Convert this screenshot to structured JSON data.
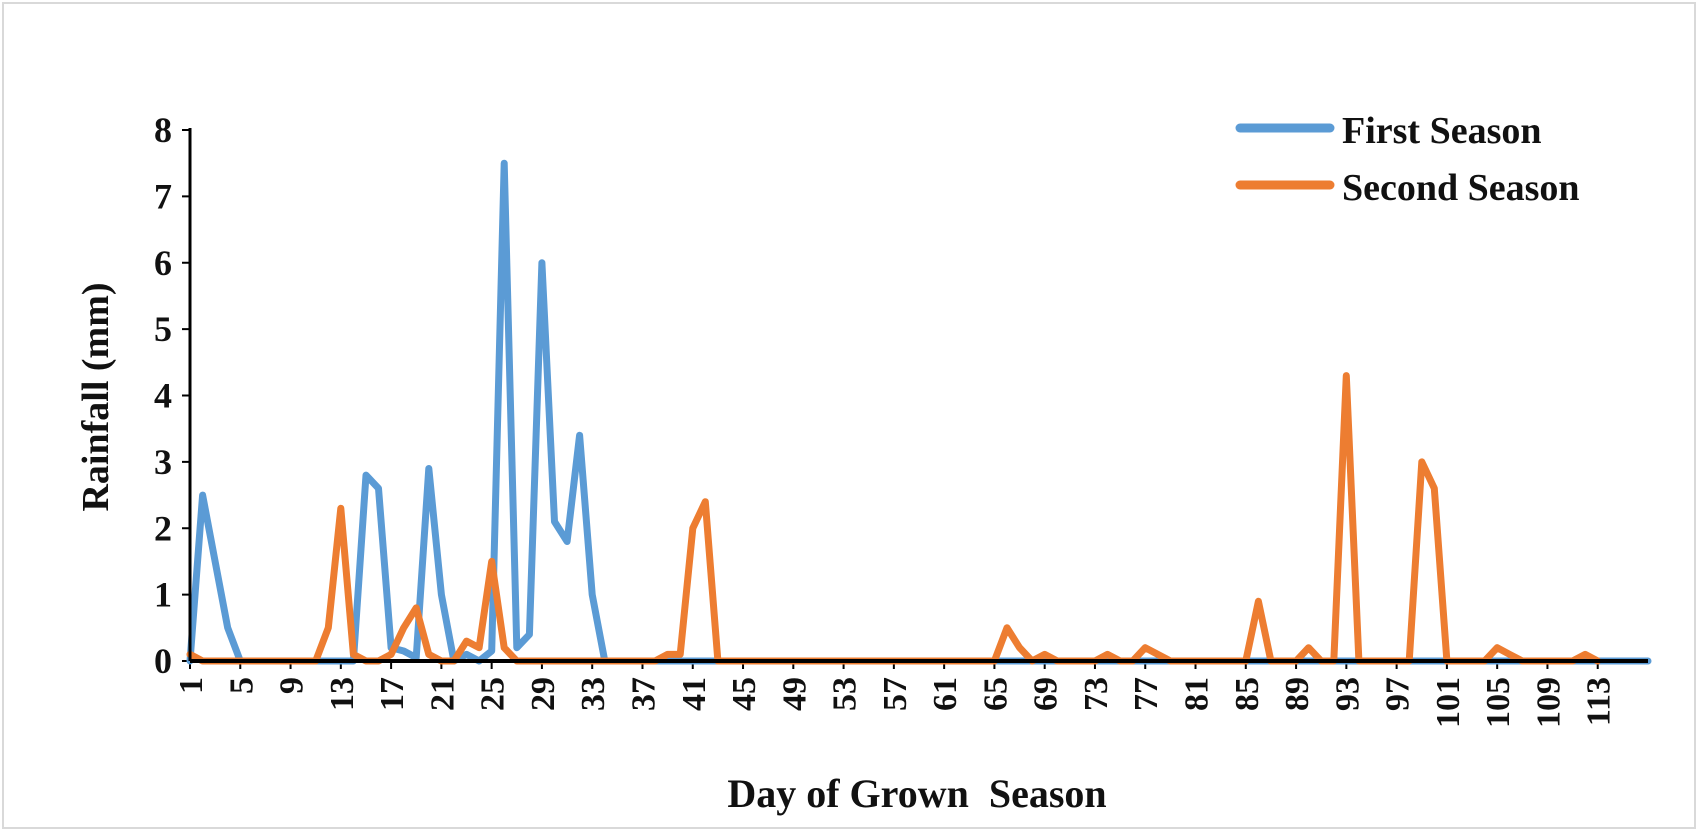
{
  "chart_data": {
    "type": "line",
    "title": "",
    "xlabel": "Day of Grown  Season",
    "ylabel": "Rainfall (mm)",
    "ylim": [
      0,
      8
    ],
    "yticks": [
      "0",
      "1",
      "2",
      "3",
      "4",
      "5",
      "6",
      "7",
      "8"
    ],
    "xlim": [
      1,
      117
    ],
    "xticks": [
      "1",
      "5",
      "9",
      "13",
      "17",
      "21",
      "25",
      "29",
      "33",
      "37",
      "41",
      "45",
      "49",
      "53",
      "57",
      "61",
      "65",
      "69",
      "73",
      "77",
      "81",
      "85",
      "89",
      "93",
      "97",
      "101",
      "105",
      "109",
      "113"
    ],
    "grid": false,
    "legend_position": "top-right",
    "series": [
      {
        "name": "First Season",
        "color": "#5b9bd5",
        "points": [
          [
            1,
            0
          ],
          [
            2,
            2.5
          ],
          [
            3,
            1.5
          ],
          [
            4,
            0.5
          ],
          [
            5,
            0
          ],
          [
            12,
            0
          ],
          [
            13,
            0
          ],
          [
            14,
            0
          ],
          [
            15,
            2.8
          ],
          [
            16,
            2.6
          ],
          [
            17,
            0.2
          ],
          [
            18,
            0.15
          ],
          [
            19,
            0.05
          ],
          [
            20,
            2.9
          ],
          [
            21,
            1
          ],
          [
            22,
            0
          ],
          [
            23,
            0.1
          ],
          [
            24,
            0
          ],
          [
            25,
            0.15
          ],
          [
            26,
            7.5
          ],
          [
            27,
            0.2
          ],
          [
            28,
            0.4
          ],
          [
            29,
            6
          ],
          [
            30,
            2.1
          ],
          [
            31,
            1.8
          ],
          [
            32,
            3.4
          ],
          [
            33,
            1
          ],
          [
            34,
            0
          ],
          [
            117,
            0
          ]
        ]
      },
      {
        "name": "Second Season",
        "color": "#ed7d31",
        "points": [
          [
            1,
            0.1
          ],
          [
            2,
            0
          ],
          [
            10,
            0
          ],
          [
            11,
            0
          ],
          [
            12,
            0.5
          ],
          [
            13,
            2.3
          ],
          [
            14,
            0.1
          ],
          [
            15,
            0
          ],
          [
            16,
            0
          ],
          [
            17,
            0.1
          ],
          [
            18,
            0.5
          ],
          [
            19,
            0.8
          ],
          [
            20,
            0.1
          ],
          [
            21,
            0
          ],
          [
            22,
            0
          ],
          [
            23,
            0.3
          ],
          [
            24,
            0.2
          ],
          [
            25,
            1.5
          ],
          [
            26,
            0.2
          ],
          [
            27,
            0
          ],
          [
            38,
            0
          ],
          [
            39,
            0.1
          ],
          [
            40,
            0.1
          ],
          [
            41,
            2
          ],
          [
            42,
            2.4
          ],
          [
            43,
            0
          ],
          [
            65,
            0
          ],
          [
            66,
            0.5
          ],
          [
            67,
            0.2
          ],
          [
            68,
            0
          ],
          [
            69,
            0.1
          ],
          [
            70,
            0
          ],
          [
            73,
            0
          ],
          [
            74,
            0.1
          ],
          [
            75,
            0
          ],
          [
            76,
            0
          ],
          [
            77,
            0.2
          ],
          [
            78,
            0.1
          ],
          [
            79,
            0
          ],
          [
            85,
            0
          ],
          [
            86,
            0.9
          ],
          [
            87,
            0
          ],
          [
            89,
            0
          ],
          [
            90,
            0.2
          ],
          [
            91,
            0
          ],
          [
            92,
            0
          ],
          [
            93,
            4.3
          ],
          [
            94,
            0
          ],
          [
            98,
            0
          ],
          [
            99,
            3
          ],
          [
            100,
            2.6
          ],
          [
            101,
            0
          ],
          [
            104,
            0
          ],
          [
            105,
            0.2
          ],
          [
            106,
            0.1
          ],
          [
            107,
            0
          ],
          [
            111,
            0
          ],
          [
            112,
            0.1
          ],
          [
            113,
            0
          ]
        ]
      }
    ]
  }
}
